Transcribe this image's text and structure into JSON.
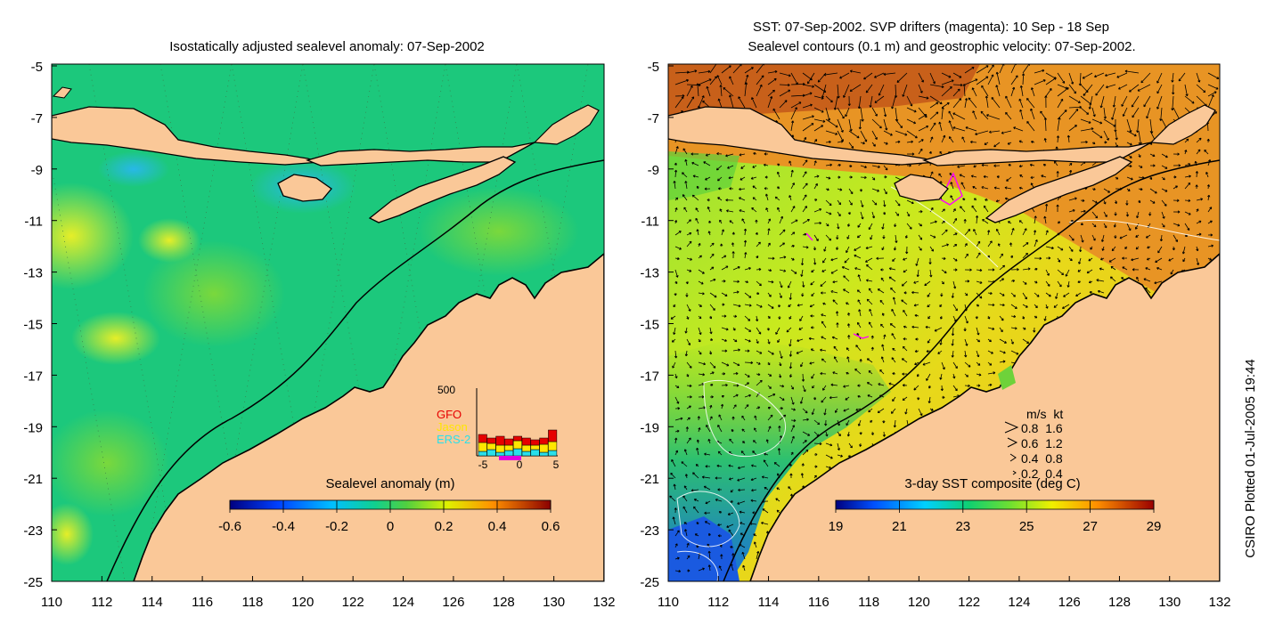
{
  "left_map": {
    "title": "Isostatically adjusted sealevel anomaly: 07-Sep-2002",
    "colorbar": {
      "label": "Sealevel anomaly (m)",
      "ticks": [
        "-0.6",
        "-0.4",
        "-0.2",
        "0",
        "0.2",
        "0.4",
        "0.6"
      ]
    },
    "inset": {
      "y_max_label": "500",
      "x_ticks": [
        "-5",
        "0",
        "5"
      ],
      "legend": [
        {
          "label": "GFO",
          "color": "#e60000"
        },
        {
          "label": "Jason",
          "color": "#ffe600"
        },
        {
          "label": "ERS-2",
          "color": "#29e0ea"
        }
      ],
      "bars": [
        {
          "ers2": 10,
          "jason": 20,
          "gfo": 18
        },
        {
          "ers2": 14,
          "jason": 14,
          "gfo": 12
        },
        {
          "ers2": 8,
          "jason": 16,
          "gfo": 20
        },
        {
          "ers2": 12,
          "jason": 12,
          "gfo": 14
        },
        {
          "ers2": 16,
          "jason": 18,
          "gfo": 10
        },
        {
          "ers2": 10,
          "jason": 14,
          "gfo": 16
        },
        {
          "ers2": 14,
          "jason": 10,
          "gfo": 12
        },
        {
          "ers2": 8,
          "jason": 18,
          "gfo": 14
        },
        {
          "ers2": 12,
          "jason": 20,
          "gfo": 26
        }
      ]
    }
  },
  "right_map": {
    "title_line1": "SST: 07-Sep-2002. SVP drifters (magenta): 10 Sep - 18 Sep",
    "title_line2": "Sealevel contours (0.1 m) and geostrophic velocity: 07-Sep-2002.",
    "colorbar": {
      "label": "3-day SST composite (deg C)",
      "ticks": [
        "19",
        "21",
        "23",
        "25",
        "27",
        "29"
      ]
    },
    "velocity_legend": {
      "header": "m/s  kt",
      "rows": [
        "0.8  1.6",
        "0.6  1.2",
        "0.4  0.8",
        "0.2  0.4"
      ]
    }
  },
  "axes": {
    "y_ticks": [
      "-5",
      "-7",
      "-9",
      "-11",
      "-13",
      "-15",
      "-17",
      "-19",
      "-21",
      "-23",
      "-25"
    ],
    "x_ticks": [
      "110",
      "112",
      "114",
      "116",
      "118",
      "120",
      "122",
      "124",
      "126",
      "128",
      "130",
      "132"
    ]
  },
  "footer": {
    "credit": "CSIRO Plotted 01-Jul-2005 19:44"
  },
  "colors": {
    "land": "#fac898",
    "coastline": "#000000",
    "ocean_left": "#1cc87c",
    "ocean_right_north": "#e8901a",
    "ocean_right_mid": "#9edc2a"
  }
}
